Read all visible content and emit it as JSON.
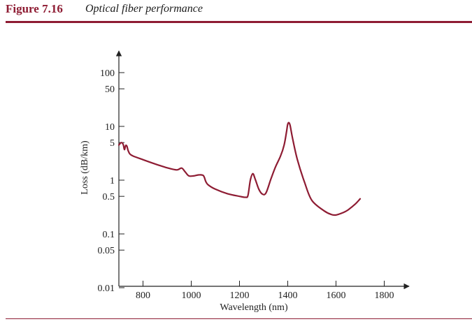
{
  "figure": {
    "number": "Figure 7.16",
    "caption": "Optical fiber performance",
    "accent_color": "#8e1c33"
  },
  "chart_data": {
    "type": "line",
    "title": "",
    "xlabel": "Wavelength (nm)",
    "ylabel": "Loss (dB/km)",
    "xlim": [
      700,
      1900
    ],
    "ylim": [
      0.01,
      100
    ],
    "y_scale": "log",
    "grid": false,
    "x_ticks": [
      800,
      1000,
      1200,
      1400,
      1600,
      1800
    ],
    "x_tick_labels": [
      "800",
      "1000",
      "1200",
      "1400",
      "1600",
      "1800"
    ],
    "y_ticks": [
      100,
      50,
      10,
      5,
      1,
      0.5,
      0.1,
      0.05,
      0.01
    ],
    "y_tick_labels": [
      "100",
      "50",
      "10",
      "5",
      "1",
      "0.5",
      "0.1",
      "0.05",
      "0.01"
    ],
    "line_color": "#8e1c33",
    "series": [
      {
        "x": [
          700,
          710,
          718,
          723,
          728,
          733,
          738,
          743,
          748,
          760,
          800,
          850,
          900,
          940,
          960,
          975,
          990,
          1010,
          1030,
          1050,
          1060,
          1070,
          1100,
          1150,
          1200,
          1225,
          1235,
          1245,
          1255,
          1265,
          1280,
          1295,
          1310,
          1330,
          1350,
          1370,
          1385,
          1395,
          1400,
          1405,
          1410,
          1420,
          1440,
          1470,
          1500,
          1550,
          1580,
          1600,
          1630,
          1650,
          1680,
          1700
        ],
        "y": [
          4.5,
          5.0,
          4.6,
          3.7,
          4.4,
          4.3,
          3.6,
          3.2,
          3.0,
          2.8,
          2.4,
          2.0,
          1.7,
          1.55,
          1.68,
          1.42,
          1.2,
          1.2,
          1.25,
          1.22,
          0.95,
          0.82,
          0.68,
          0.56,
          0.5,
          0.48,
          0.52,
          1.0,
          1.32,
          1.05,
          0.68,
          0.55,
          0.58,
          1.05,
          1.8,
          2.8,
          4.5,
          8.0,
          11.0,
          11.7,
          10.3,
          6.0,
          2.4,
          0.9,
          0.42,
          0.27,
          0.23,
          0.225,
          0.25,
          0.28,
          0.36,
          0.45
        ]
      }
    ]
  }
}
